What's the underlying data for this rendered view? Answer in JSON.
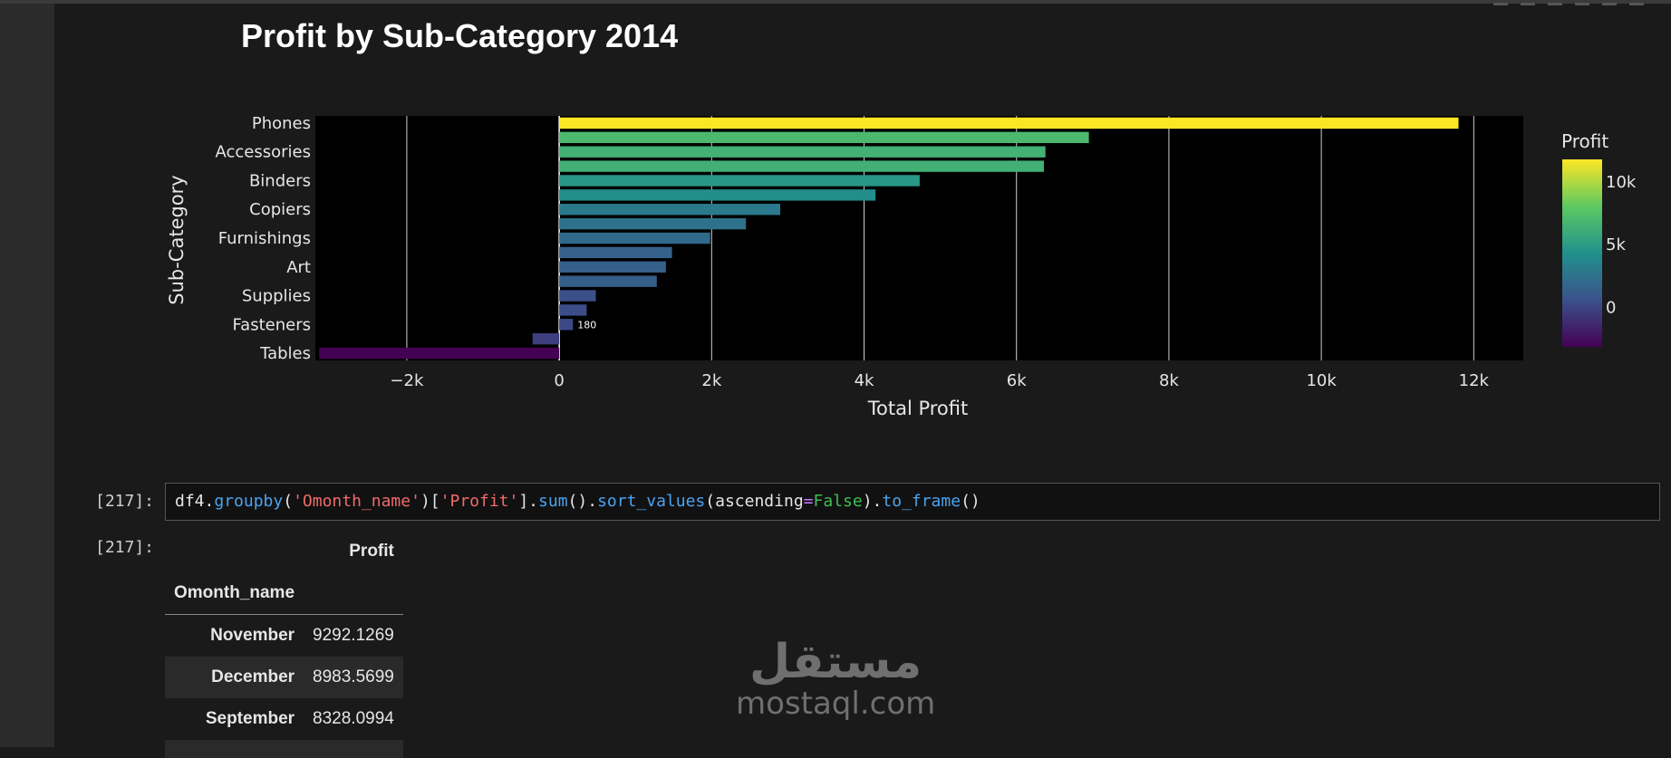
{
  "notebook": {
    "cell_217_prompt_in": "[217]:",
    "cell_217_prompt_out": "[217]:",
    "code_tokens": [
      {
        "t": "df4",
        "c": "plain"
      },
      {
        "t": ".",
        "c": "plain"
      },
      {
        "t": "groupby",
        "c": "fn"
      },
      {
        "t": "(",
        "c": "plain"
      },
      {
        "t": "'Omonth_name'",
        "c": "str"
      },
      {
        "t": ")[",
        "c": "plain"
      },
      {
        "t": "'Profit'",
        "c": "str"
      },
      {
        "t": "].",
        "c": "plain"
      },
      {
        "t": "sum",
        "c": "fn"
      },
      {
        "t": "().",
        "c": "plain"
      },
      {
        "t": "sort_values",
        "c": "fn"
      },
      {
        "t": "(ascending",
        "c": "plain"
      },
      {
        "t": "=",
        "c": "op"
      },
      {
        "t": "False",
        "c": "kw"
      },
      {
        "t": ").",
        "c": "plain"
      },
      {
        "t": "to_frame",
        "c": "fn"
      },
      {
        "t": "()",
        "c": "plain"
      }
    ],
    "table": {
      "column_header": "Profit",
      "index_name": "Omonth_name",
      "rows": [
        {
          "label": "November",
          "value": "9292.1269"
        },
        {
          "label": "December",
          "value": "8983.5699"
        },
        {
          "label": "September",
          "value": "8328.0994"
        }
      ]
    }
  },
  "watermark": {
    "arabic": "مستقل",
    "latin": "mostaql.com"
  },
  "colors": {
    "bg": "#1a1a1a",
    "plot_bg": "#000000",
    "code_fn": "#4aa3f0",
    "code_str": "#f06a6a",
    "code_kw": "#3fbf4f"
  },
  "chart_data": {
    "type": "bar",
    "orientation": "horizontal",
    "title": "Profit by Sub-Category 2014",
    "xlabel": "Total Profit",
    "ylabel": "Sub-Category",
    "xlim": [
      -3200,
      12650
    ],
    "xticks": [
      -2000,
      0,
      2000,
      4000,
      6000,
      8000,
      10000,
      12000
    ],
    "xtick_labels": [
      "−2k",
      "0",
      "2k",
      "4k",
      "6k",
      "8k",
      "10k",
      "12k"
    ],
    "y_tick_labels": [
      "Phones",
      "Accessories",
      "Binders",
      "Copiers",
      "Furnishings",
      "Art",
      "Supplies",
      "Fasteners",
      "Tables"
    ],
    "bars": [
      {
        "value": 11800,
        "label_at": "Phones"
      },
      {
        "value": 6950
      },
      {
        "value": 6380,
        "label_at": "Accessories"
      },
      {
        "value": 6360
      },
      {
        "value": 4730,
        "label_at": "Binders"
      },
      {
        "value": 4150
      },
      {
        "value": 2900,
        "label_at": "Copiers"
      },
      {
        "value": 2450
      },
      {
        "value": 1980,
        "label_at": "Furnishings"
      },
      {
        "value": 1480
      },
      {
        "value": 1400,
        "label_at": "Art"
      },
      {
        "value": 1280
      },
      {
        "value": 480,
        "label_at": "Supplies"
      },
      {
        "value": 360
      },
      {
        "value": 180,
        "label_at": "Fasteners",
        "data_label": "180"
      },
      {
        "value": -350
      },
      {
        "value": -3150,
        "label_at": "Tables"
      }
    ],
    "colorbar": {
      "title": "Profit",
      "ticks": [
        "10k",
        "5k",
        "0"
      ],
      "colorscale": "viridis",
      "range": [
        -3150,
        11800
      ]
    },
    "grid": true,
    "legend": "none"
  }
}
